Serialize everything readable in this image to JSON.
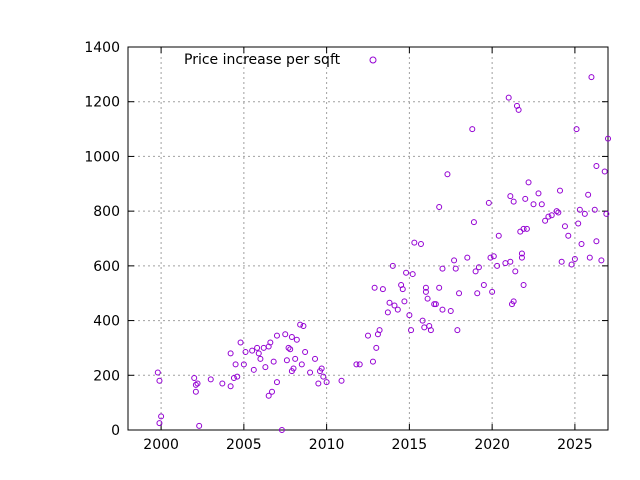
{
  "chart_data": {
    "type": "scatter",
    "title": "",
    "xlabel": "",
    "ylabel": "",
    "xlim": [
      1998,
      2027
    ],
    "ylim": [
      0,
      1400
    ],
    "xticks": [
      2000,
      2005,
      2010,
      2015,
      2020,
      2025
    ],
    "yticks": [
      0,
      200,
      400,
      600,
      800,
      1000,
      1200,
      1400
    ],
    "grid": true,
    "legend_position": "top",
    "series": [
      {
        "name": "Price increase per sqft",
        "color": "#9400d3",
        "marker": "open-circle",
        "points": [
          [
            1999.8,
            210
          ],
          [
            1999.9,
            180
          ],
          [
            2000.0,
            50
          ],
          [
            1999.9,
            25
          ],
          [
            2002.0,
            190
          ],
          [
            2002.1,
            165
          ],
          [
            2002.1,
            140
          ],
          [
            2002.2,
            170
          ],
          [
            2002.3,
            15
          ],
          [
            2003.0,
            185
          ],
          [
            2003.7,
            170
          ],
          [
            2004.2,
            280
          ],
          [
            2004.2,
            160
          ],
          [
            2004.4,
            190
          ],
          [
            2004.5,
            240
          ],
          [
            2004.6,
            195
          ],
          [
            2004.8,
            320
          ],
          [
            2005.0,
            240
          ],
          [
            2005.1,
            285
          ],
          [
            2005.5,
            290
          ],
          [
            2005.6,
            220
          ],
          [
            2005.8,
            300
          ],
          [
            2005.9,
            280
          ],
          [
            2006.0,
            260
          ],
          [
            2006.2,
            300
          ],
          [
            2006.3,
            230
          ],
          [
            2006.5,
            305
          ],
          [
            2006.5,
            125
          ],
          [
            2006.6,
            320
          ],
          [
            2006.7,
            140
          ],
          [
            2006.8,
            250
          ],
          [
            2007.0,
            345
          ],
          [
            2007.0,
            175
          ],
          [
            2007.3,
            0
          ],
          [
            2007.5,
            350
          ],
          [
            2007.6,
            255
          ],
          [
            2007.7,
            300
          ],
          [
            2007.8,
            295
          ],
          [
            2007.9,
            340
          ],
          [
            2007.9,
            215
          ],
          [
            2008.0,
            225
          ],
          [
            2008.1,
            260
          ],
          [
            2008.2,
            330
          ],
          [
            2008.4,
            385
          ],
          [
            2008.5,
            240
          ],
          [
            2008.6,
            380
          ],
          [
            2008.7,
            285
          ],
          [
            2009.0,
            210
          ],
          [
            2009.3,
            260
          ],
          [
            2009.5,
            170
          ],
          [
            2009.6,
            215
          ],
          [
            2009.7,
            225
          ],
          [
            2009.8,
            195
          ],
          [
            2010.0,
            175
          ],
          [
            2010.9,
            180
          ],
          [
            2011.8,
            240
          ],
          [
            2012.0,
            240
          ],
          [
            2012.5,
            345
          ],
          [
            2012.8,
            250
          ],
          [
            2012.9,
            520
          ],
          [
            2013.0,
            300
          ],
          [
            2013.1,
            350
          ],
          [
            2013.2,
            365
          ],
          [
            2013.4,
            515
          ],
          [
            2013.7,
            430
          ],
          [
            2013.8,
            465
          ],
          [
            2014.0,
            600
          ],
          [
            2014.1,
            455
          ],
          [
            2014.3,
            440
          ],
          [
            2014.5,
            530
          ],
          [
            2014.6,
            515
          ],
          [
            2014.7,
            470
          ],
          [
            2014.8,
            575
          ],
          [
            2015.0,
            420
          ],
          [
            2015.1,
            365
          ],
          [
            2015.2,
            570
          ],
          [
            2015.3,
            685
          ],
          [
            2015.7,
            680
          ],
          [
            2015.8,
            400
          ],
          [
            2015.9,
            375
          ],
          [
            2016.0,
            505
          ],
          [
            2016.0,
            520
          ],
          [
            2016.1,
            480
          ],
          [
            2016.2,
            380
          ],
          [
            2016.3,
            365
          ],
          [
            2016.5,
            460
          ],
          [
            2016.6,
            460
          ],
          [
            2016.8,
            520
          ],
          [
            2016.8,
            815
          ],
          [
            2017.0,
            590
          ],
          [
            2017.0,
            440
          ],
          [
            2017.3,
            935
          ],
          [
            2017.5,
            435
          ],
          [
            2017.7,
            620
          ],
          [
            2017.8,
            590
          ],
          [
            2017.9,
            365
          ],
          [
            2018.0,
            500
          ],
          [
            2018.5,
            630
          ],
          [
            2018.8,
            1100
          ],
          [
            2018.9,
            760
          ],
          [
            2019.0,
            580
          ],
          [
            2019.1,
            500
          ],
          [
            2019.2,
            595
          ],
          [
            2019.5,
            530
          ],
          [
            2019.8,
            830
          ],
          [
            2019.9,
            630
          ],
          [
            2020.0,
            505
          ],
          [
            2020.1,
            635
          ],
          [
            2020.3,
            600
          ],
          [
            2020.4,
            710
          ],
          [
            2020.8,
            610
          ],
          [
            2021.0,
            1215
          ],
          [
            2021.1,
            855
          ],
          [
            2021.1,
            615
          ],
          [
            2021.2,
            460
          ],
          [
            2021.3,
            470
          ],
          [
            2021.3,
            835
          ],
          [
            2021.4,
            580
          ],
          [
            2021.5,
            1185
          ],
          [
            2021.6,
            1170
          ],
          [
            2021.7,
            725
          ],
          [
            2021.8,
            645
          ],
          [
            2021.8,
            630
          ],
          [
            2021.9,
            735
          ],
          [
            2021.9,
            530
          ],
          [
            2022.0,
            845
          ],
          [
            2022.1,
            735
          ],
          [
            2022.2,
            905
          ],
          [
            2022.5,
            825
          ],
          [
            2022.8,
            865
          ],
          [
            2023.0,
            825
          ],
          [
            2023.2,
            765
          ],
          [
            2023.4,
            780
          ],
          [
            2023.6,
            785
          ],
          [
            2023.9,
            800
          ],
          [
            2024.0,
            795
          ],
          [
            2024.1,
            875
          ],
          [
            2024.2,
            615
          ],
          [
            2024.4,
            745
          ],
          [
            2024.6,
            710
          ],
          [
            2024.8,
            605
          ],
          [
            2025.0,
            625
          ],
          [
            2025.1,
            1100
          ],
          [
            2025.2,
            755
          ],
          [
            2025.3,
            805
          ],
          [
            2025.4,
            680
          ],
          [
            2025.6,
            790
          ],
          [
            2025.8,
            860
          ],
          [
            2025.9,
            630
          ],
          [
            2026.0,
            1290
          ],
          [
            2026.2,
            805
          ],
          [
            2026.3,
            965
          ],
          [
            2026.3,
            690
          ],
          [
            2026.6,
            620
          ],
          [
            2026.8,
            945
          ],
          [
            2026.9,
            790
          ],
          [
            2027.0,
            1065
          ]
        ]
      }
    ]
  }
}
